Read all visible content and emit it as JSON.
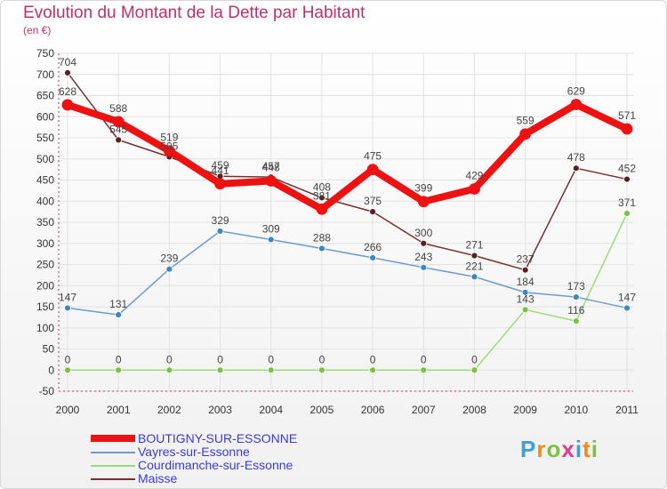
{
  "title": "Evolution du Montant de la Dette par Habitant",
  "subtitle": "(en €)",
  "brand": "Proxiti",
  "chart_data": {
    "type": "line",
    "x": [
      "2000",
      "2001",
      "2002",
      "2003",
      "2004",
      "2005",
      "2006",
      "2007",
      "2008",
      "2009",
      "2010",
      "2011"
    ],
    "ylim": [
      -50,
      750
    ],
    "yticks": [
      -50,
      0,
      50,
      100,
      150,
      200,
      250,
      300,
      350,
      400,
      450,
      500,
      550,
      600,
      650,
      700,
      750
    ],
    "grid": true,
    "legend_position": "bottom-left",
    "series": [
      {
        "name": "BOUTIGNY-SUR-ESSONNE",
        "color": "#ee1111",
        "values": [
          628,
          588,
          519,
          441,
          448,
          381,
          475,
          399,
          429,
          559,
          629,
          571
        ]
      },
      {
        "name": "Vayres-sur-Essonne",
        "color": "#6b9bd2",
        "values": [
          147,
          131,
          239,
          329,
          309,
          288,
          266,
          243,
          221,
          184,
          173,
          147
        ]
      },
      {
        "name": "Courdimanche-sur-Essonne",
        "color": "#99dd77",
        "values": [
          0,
          0,
          0,
          0,
          0,
          0,
          0,
          0,
          0,
          143,
          116,
          371
        ]
      },
      {
        "name": "Maisse",
        "color": "#7a2e2e",
        "values": [
          704,
          545,
          505,
          459,
          457,
          408,
          375,
          300,
          271,
          237,
          478,
          452
        ]
      }
    ]
  }
}
